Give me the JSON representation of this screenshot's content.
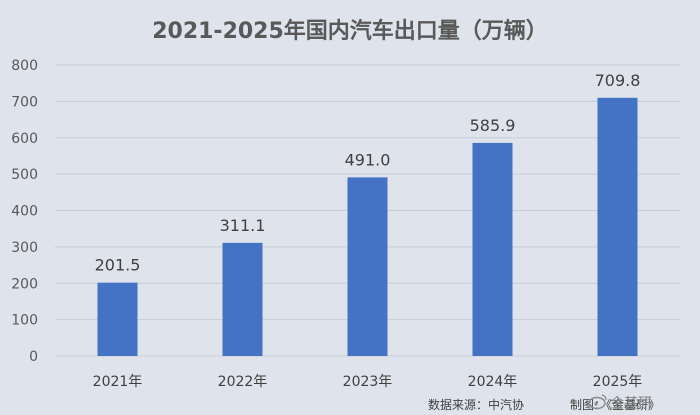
{
  "chart_data": {
    "type": "bar",
    "title": "2021-2025年国内汽车出口量（万辆）",
    "categories": [
      "2021年",
      "2022年",
      "2023年",
      "2024年",
      "2025年"
    ],
    "values": [
      201.5,
      311.1,
      491.0,
      585.9,
      709.8
    ],
    "data_labels": [
      "201.5",
      "311.1",
      "491.0",
      "585.9",
      "709.8"
    ],
    "yticks": [
      0,
      100,
      200,
      300,
      400,
      500,
      600,
      700,
      800
    ],
    "ylim": [
      0,
      800
    ],
    "grid": true,
    "legend": "none",
    "bar_color": "#4472c4",
    "xlabel": "",
    "ylabel": ""
  },
  "footer": {
    "source": "数据来源：中汽协",
    "credit": "制图：《金基研》"
  },
  "watermark": {
    "text": "金基研",
    "icon": "weibo-icon"
  },
  "colors": {
    "background": "#dfe3ec",
    "grid": "#c8ccd4",
    "bar": "#4472c4"
  }
}
